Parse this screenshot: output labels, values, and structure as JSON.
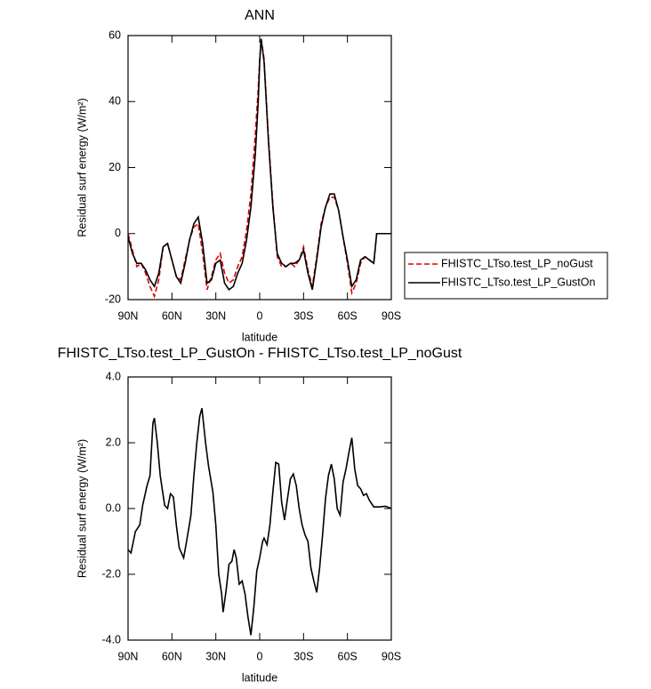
{
  "chart_data": [
    {
      "type": "line",
      "title": "ANN",
      "x_label": "latitude",
      "y_label": "Residual surf energy (W/m²)",
      "x": [
        90,
        87,
        84,
        81,
        78,
        75,
        72,
        69,
        66,
        63,
        60,
        57,
        54,
        51,
        48,
        45,
        42,
        39,
        36,
        33,
        30,
        27,
        24,
        21,
        18,
        15,
        12,
        9,
        6,
        3,
        1,
        0,
        -1,
        -3,
        -6,
        -9,
        -12,
        -15,
        -18,
        -21,
        -24,
        -27,
        -30,
        -33,
        -36,
        -39,
        -42,
        -45,
        -48,
        -51,
        -54,
        -57,
        -60,
        -63,
        -66,
        -69,
        -72,
        -75,
        -78,
        -80,
        -84,
        -87,
        -90
      ],
      "series": [
        {
          "name": "FHISTC_LTso.test_LP_noGust",
          "color": "#e00000",
          "dashed": true,
          "values": [
            0,
            -5,
            -10,
            -9,
            -12,
            -16,
            -19,
            -14,
            -4,
            -3,
            -8,
            -13,
            -14,
            -8,
            -2,
            2,
            3,
            -6,
            -17,
            -13,
            -8,
            -6,
            -12,
            -15,
            -14,
            -10,
            -7,
            1,
            12,
            30,
            44,
            53,
            59,
            53,
            29,
            9,
            -7,
            -10,
            -10,
            -9,
            -10,
            -8,
            -4,
            -11,
            -16,
            -7,
            3,
            8,
            11,
            11,
            7,
            -1,
            -9,
            -18,
            -15,
            -9,
            -7,
            -8,
            -9,
            0,
            0,
            0,
            0
          ]
        },
        {
          "name": "FHISTC_LTso.test_LP_GustOn",
          "color": "#000000",
          "dashed": false,
          "values": [
            -1,
            -6,
            -9,
            -9,
            -11,
            -14,
            -16,
            -12,
            -4,
            -3,
            -8,
            -13,
            -15,
            -9,
            -2,
            3,
            5,
            -3,
            -15,
            -14,
            -9,
            -8,
            -15,
            -17,
            -16,
            -12,
            -9,
            -2,
            8,
            24,
            40,
            52,
            59,
            52,
            28,
            8,
            -6,
            -9,
            -10,
            -9,
            -9,
            -8,
            -5,
            -12,
            -17,
            -8,
            2,
            8,
            12,
            12,
            7,
            -1,
            -8,
            -16,
            -14,
            -8,
            -7,
            -8,
            -9,
            0,
            0,
            0,
            0
          ]
        }
      ],
      "xlim": [
        90,
        -90
      ],
      "xticks": [
        {
          "value": 90,
          "label": "90N"
        },
        {
          "value": 60,
          "label": "60N"
        },
        {
          "value": 30,
          "label": "30N"
        },
        0,
        {
          "value": -30,
          "label": "30S"
        },
        {
          "value": -60,
          "label": "60S"
        },
        {
          "value": -90,
          "label": "90S"
        }
      ],
      "ylim": [
        -20,
        60
      ],
      "yticks": [
        -20,
        0,
        20,
        40,
        60
      ],
      "legend": "right"
    },
    {
      "type": "line",
      "title": "FHISTC_LTso.test_LP_GustOn - FHISTC_LTso.test_LP_noGust",
      "x_label": "latitude",
      "y_label": "Residual surf energy (W/m²)",
      "x": [
        90,
        88,
        85,
        82,
        80,
        77,
        75,
        73,
        72,
        70,
        68,
        65,
        63,
        61,
        59,
        57,
        55,
        52,
        50,
        47,
        45,
        43,
        41,
        39.5,
        37,
        35,
        32,
        30,
        28,
        26,
        25,
        23,
        21,
        19,
        17.5,
        16,
        14,
        12,
        10,
        8,
        6,
        4,
        2,
        0,
        -2,
        -3,
        -5,
        -7,
        -9,
        -11,
        -13,
        -15,
        -17,
        -19,
        -21,
        -23,
        -25,
        -27,
        -29,
        -31,
        -33,
        -35,
        -37,
        -39,
        -41,
        -43,
        -45,
        -47,
        -49,
        -51,
        -53,
        -55,
        -57,
        -59,
        -61,
        -63,
        -65,
        -67,
        -69,
        -71,
        -73,
        -75,
        -78,
        -82,
        -86,
        -90
      ],
      "series": [
        {
          "color": "#000000",
          "dashed": false,
          "values": [
            -1.25,
            -1.35,
            -0.7,
            -0.5,
            0.1,
            0.7,
            1.0,
            2.6,
            2.75,
            2.0,
            1.0,
            0.1,
            0.0,
            0.45,
            0.35,
            -0.5,
            -1.2,
            -1.5,
            -1.0,
            -0.2,
            1.0,
            2.0,
            2.8,
            3.05,
            2.0,
            1.3,
            0.5,
            -0.5,
            -2.0,
            -2.6,
            -3.15,
            -2.5,
            -1.7,
            -1.6,
            -1.25,
            -1.5,
            -2.3,
            -2.2,
            -2.6,
            -3.3,
            -3.85,
            -3.0,
            -1.9,
            -1.5,
            -1.0,
            -0.9,
            -1.1,
            -0.5,
            0.5,
            1.4,
            1.35,
            0.2,
            -0.35,
            0.3,
            0.9,
            1.05,
            0.7,
            0.0,
            -0.5,
            -0.8,
            -1.0,
            -1.8,
            -2.2,
            -2.55,
            -1.8,
            -0.8,
            0.3,
            1.0,
            1.35,
            0.9,
            0.0,
            -0.2,
            0.8,
            1.2,
            1.7,
            2.15,
            1.2,
            0.7,
            0.6,
            0.4,
            0.45,
            0.25,
            0.05,
            0.05,
            0.07,
            0.0
          ]
        }
      ],
      "xlim": [
        90,
        -90
      ],
      "xticks": [
        {
          "value": 90,
          "label": "90N"
        },
        {
          "value": 60,
          "label": "60N"
        },
        {
          "value": 30,
          "label": "30N"
        },
        0,
        {
          "value": -30,
          "label": "30S"
        },
        {
          "value": -60,
          "label": "60S"
        },
        {
          "value": -90,
          "label": "90S"
        }
      ],
      "ylim": [
        -4,
        4
      ],
      "yticks": [
        {
          "value": -4,
          "label": "-4.0"
        },
        {
          "value": -2,
          "label": "-2.0"
        },
        {
          "value": 0,
          "label": "0.0"
        },
        {
          "value": 2,
          "label": "2.0"
        },
        {
          "value": 4,
          "label": "4.0"
        }
      ]
    }
  ]
}
